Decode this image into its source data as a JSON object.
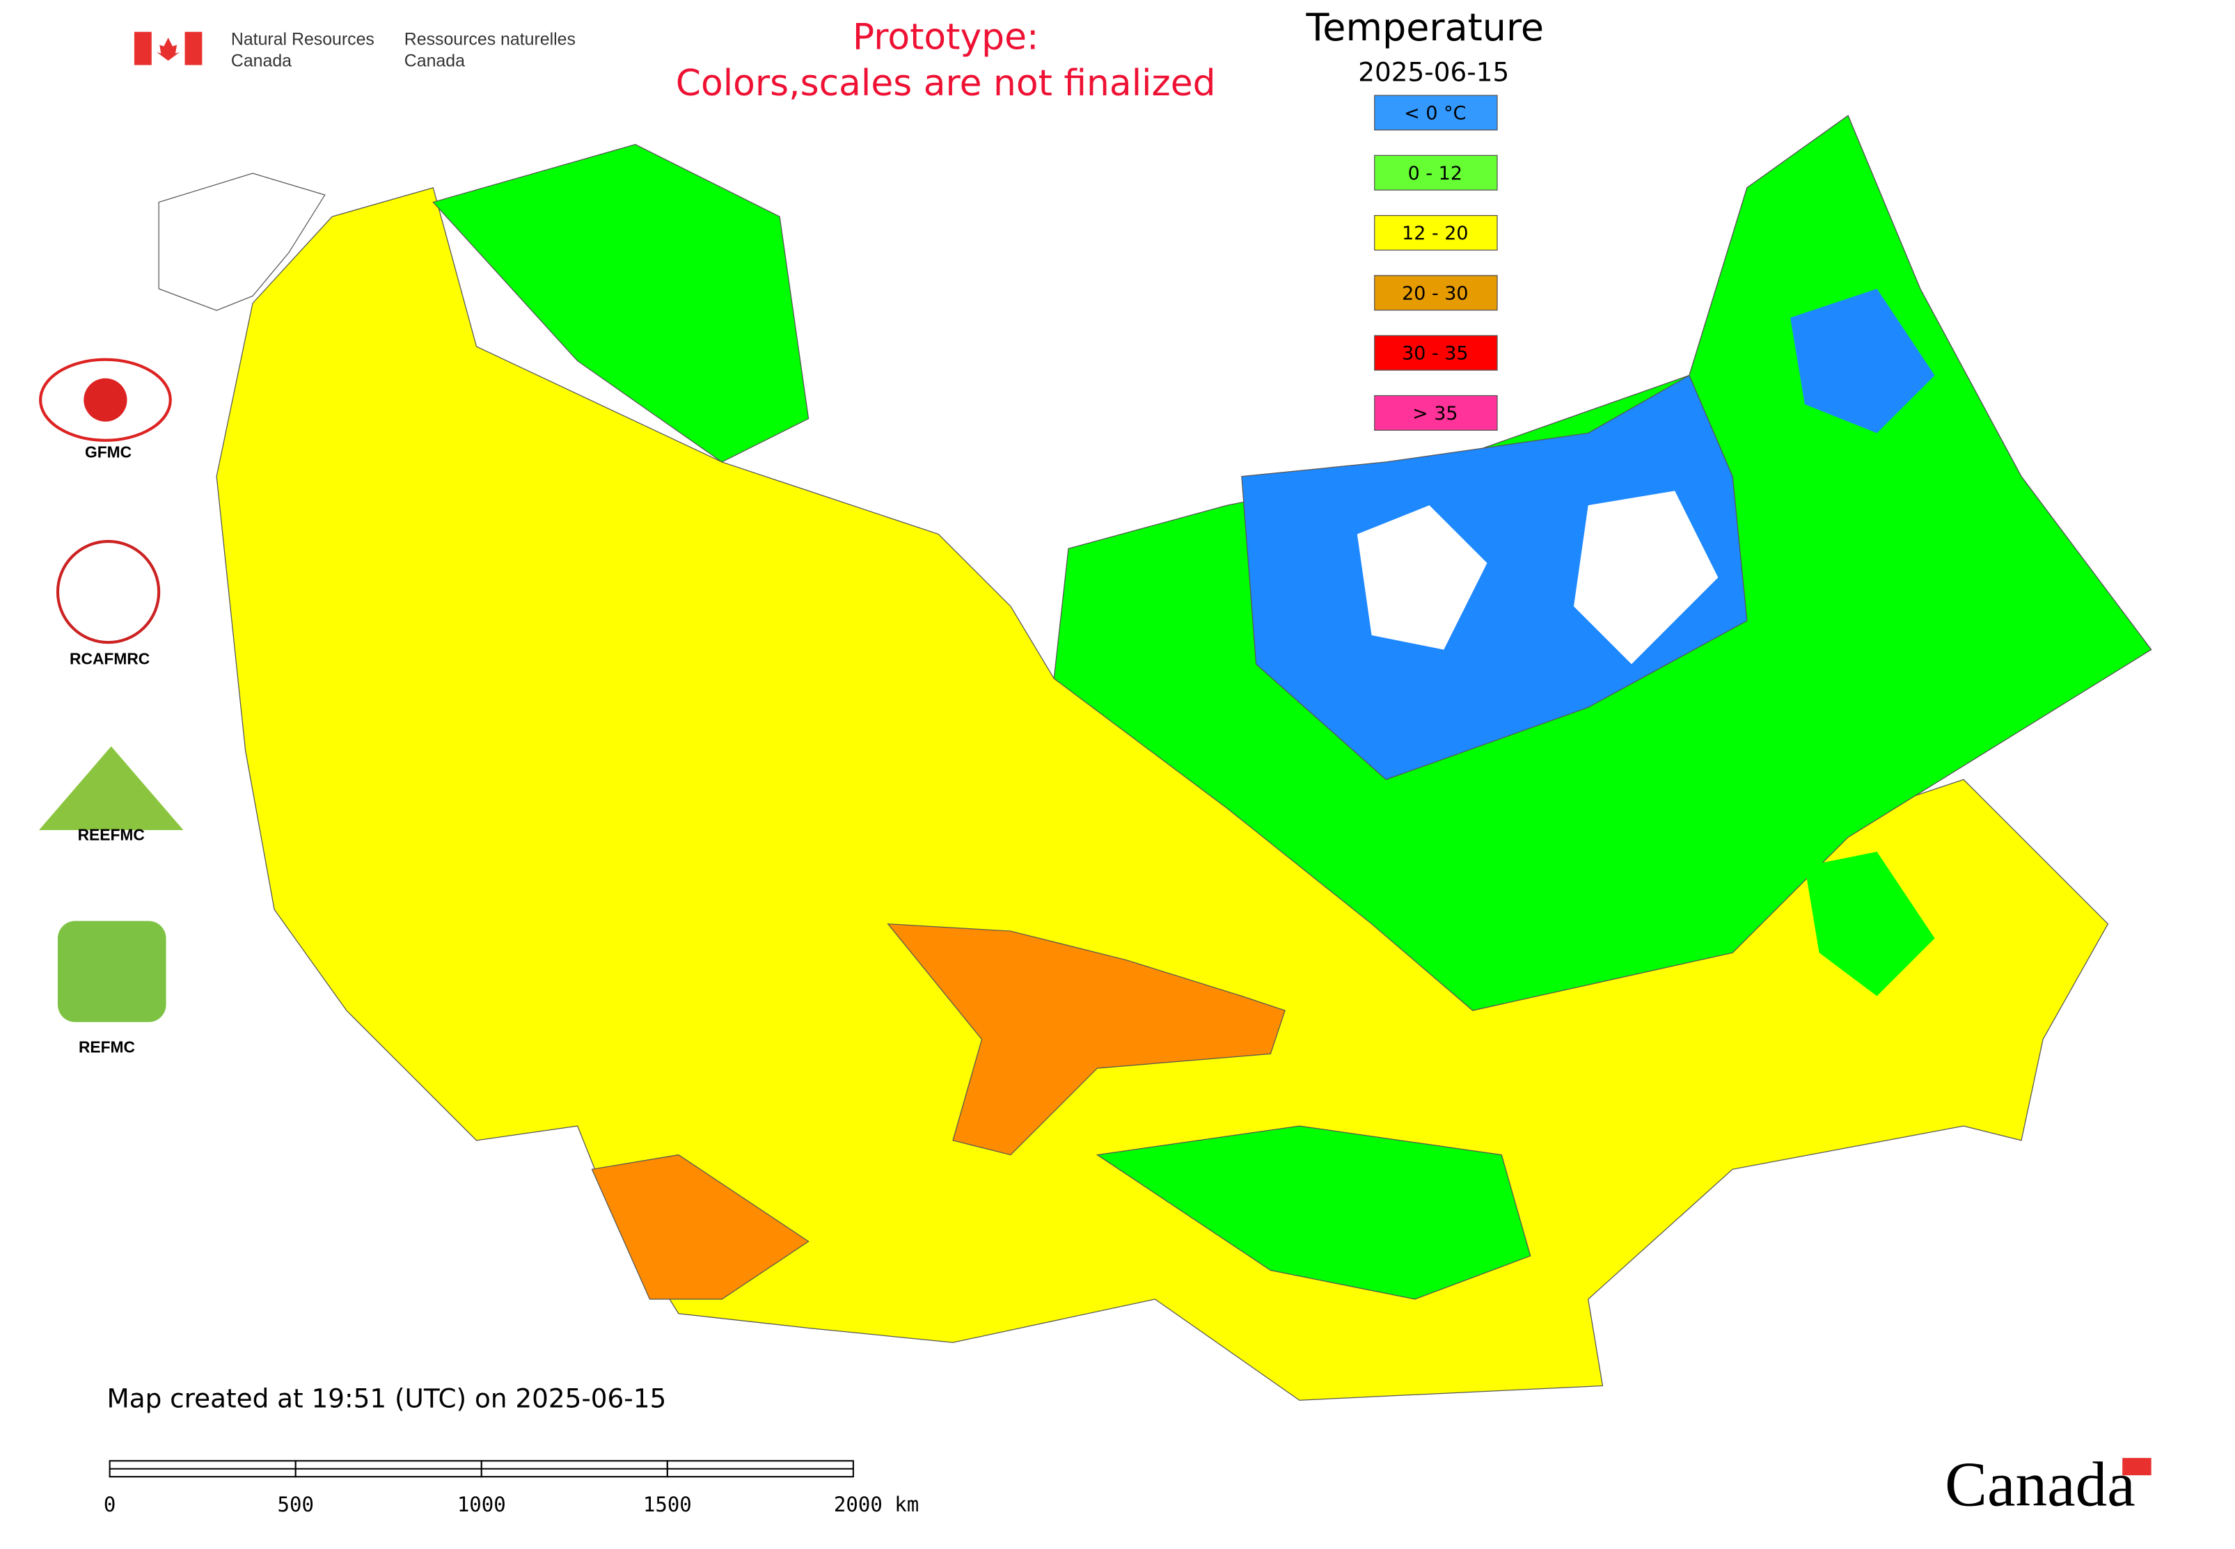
{
  "header": {
    "department_en": [
      "Natural Resources",
      "Canada"
    ],
    "department_fr": [
      "Ressources naturelles",
      "Canada"
    ],
    "notice": [
      "Prototype:",
      "Colors,scales are not finalized"
    ]
  },
  "legend": {
    "title": "Temperature",
    "date": "2025-06-15",
    "items": [
      {
        "label": "< 0 °C",
        "color": "#3399ff"
      },
      {
        "label": "0 - 12",
        "color": "#66ff33"
      },
      {
        "label": "12 - 20",
        "color": "#ffff00"
      },
      {
        "label": "20 - 30",
        "color": "#e69b00"
      },
      {
        "label": "30 - 35",
        "color": "#ff0000"
      },
      {
        "label": "> 35",
        "color": "#ff3399"
      }
    ]
  },
  "logos": [
    "GFMC",
    "RCAFMRC",
    "REEFMC",
    "REFMC"
  ],
  "footer": {
    "created": "Map created at 19:51 (UTC) on 2025-06-15",
    "scale_labels": [
      "0",
      "500",
      "1000",
      "1500",
      "2000 km"
    ],
    "wordmark": "Canada"
  }
}
